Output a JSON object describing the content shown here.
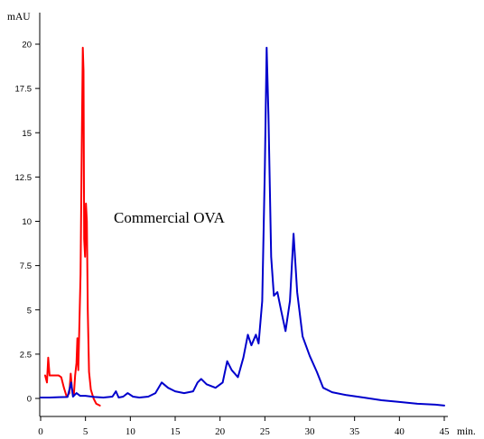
{
  "chart_data": {
    "type": "line",
    "ylabel": "mAU",
    "xlabel": "min.",
    "annotation": "Commercial OVA",
    "xlim": [
      0,
      45
    ],
    "ylim": [
      0,
      20
    ],
    "x_ticks": [
      "0",
      "5",
      "10",
      "15",
      "20",
      "25",
      "30",
      "35",
      "40",
      "45"
    ],
    "y_ticks": [
      "0",
      "2.5",
      "5",
      "7.5",
      "10",
      "12.5",
      "15",
      "17.5",
      "20"
    ],
    "x_tick_values": [
      0,
      5,
      10,
      15,
      20,
      25,
      30,
      35,
      40,
      45
    ],
    "y_tick_values": [
      0,
      2.5,
      5,
      7.5,
      10,
      12.5,
      15,
      17.5,
      20
    ],
    "grid": false,
    "series": [
      {
        "color": "#ff0000",
        "points": [
          [
            0.5,
            1.3
          ],
          [
            0.7,
            0.9
          ],
          [
            0.85,
            2.3
          ],
          [
            1.0,
            1.3
          ],
          [
            1.5,
            1.3
          ],
          [
            2.0,
            1.3
          ],
          [
            2.3,
            1.2
          ],
          [
            2.6,
            0.6
          ],
          [
            2.9,
            0.1
          ],
          [
            3.2,
            0.3
          ],
          [
            3.35,
            1.4
          ],
          [
            3.5,
            0.5
          ],
          [
            3.7,
            0.2
          ],
          [
            3.85,
            1.3
          ],
          [
            4.0,
            2.0
          ],
          [
            4.1,
            3.4
          ],
          [
            4.2,
            1.6
          ],
          [
            4.3,
            3.7
          ],
          [
            4.45,
            7.0
          ],
          [
            4.6,
            15.0
          ],
          [
            4.7,
            19.8
          ],
          [
            4.78,
            18.5
          ],
          [
            4.85,
            9.0
          ],
          [
            4.95,
            8.0
          ],
          [
            5.05,
            11.0
          ],
          [
            5.15,
            10.0
          ],
          [
            5.25,
            5.0
          ],
          [
            5.4,
            1.5
          ],
          [
            5.6,
            0.5
          ],
          [
            5.9,
            0.0
          ],
          [
            6.2,
            -0.3
          ],
          [
            6.6,
            -0.4
          ]
        ]
      },
      {
        "color": "#0000cc",
        "points": [
          [
            0,
            0.05
          ],
          [
            1,
            0.05
          ],
          [
            2,
            0.07
          ],
          [
            3,
            0.08
          ],
          [
            3.4,
            0.9
          ],
          [
            3.6,
            0.1
          ],
          [
            4,
            0.3
          ],
          [
            4.4,
            0.15
          ],
          [
            5,
            0.15
          ],
          [
            6,
            0.08
          ],
          [
            7,
            0.05
          ],
          [
            8,
            0.1
          ],
          [
            8.4,
            0.4
          ],
          [
            8.7,
            0.05
          ],
          [
            9.2,
            0.1
          ],
          [
            9.7,
            0.3
          ],
          [
            10.3,
            0.1
          ],
          [
            11,
            0.05
          ],
          [
            12,
            0.1
          ],
          [
            12.8,
            0.3
          ],
          [
            13.5,
            0.9
          ],
          [
            14.2,
            0.6
          ],
          [
            15,
            0.4
          ],
          [
            16,
            0.3
          ],
          [
            17,
            0.4
          ],
          [
            17.5,
            0.9
          ],
          [
            17.9,
            1.1
          ],
          [
            18.5,
            0.8
          ],
          [
            19.5,
            0.6
          ],
          [
            20.3,
            0.9
          ],
          [
            20.8,
            2.1
          ],
          [
            21.3,
            1.6
          ],
          [
            22,
            1.2
          ],
          [
            22.6,
            2.3
          ],
          [
            23.1,
            3.6
          ],
          [
            23.5,
            3.0
          ],
          [
            24.0,
            3.6
          ],
          [
            24.3,
            3.1
          ],
          [
            24.7,
            5.5
          ],
          [
            25.0,
            13.0
          ],
          [
            25.2,
            19.8
          ],
          [
            25.4,
            16.0
          ],
          [
            25.7,
            8.0
          ],
          [
            26.0,
            5.8
          ],
          [
            26.4,
            6.0
          ],
          [
            26.8,
            5.0
          ],
          [
            27.3,
            3.8
          ],
          [
            27.8,
            5.5
          ],
          [
            28.2,
            9.3
          ],
          [
            28.6,
            6.0
          ],
          [
            29.2,
            3.5
          ],
          [
            30,
            2.4
          ],
          [
            30.8,
            1.5
          ],
          [
            31.5,
            0.6
          ],
          [
            32.5,
            0.35
          ],
          [
            34,
            0.2
          ],
          [
            36,
            0.05
          ],
          [
            38,
            -0.1
          ],
          [
            40,
            -0.2
          ],
          [
            42,
            -0.3
          ],
          [
            44,
            -0.35
          ],
          [
            45,
            -0.4
          ]
        ]
      }
    ]
  }
}
